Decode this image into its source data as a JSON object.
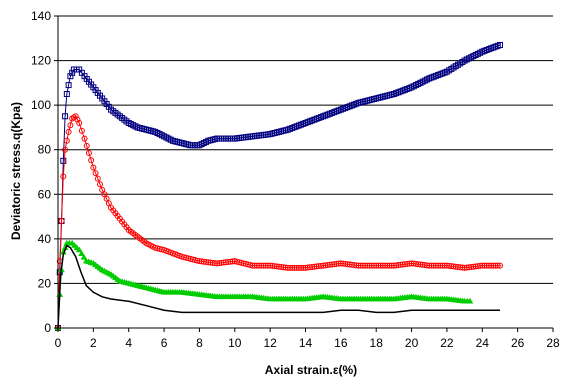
{
  "chart_data": {
    "type": "line",
    "title": "",
    "xlabel": "Axial strain.ε(%)",
    "ylabel": "Deviatoric stress.q(Kpa)",
    "xlim": [
      0,
      28
    ],
    "ylim": [
      0,
      140
    ],
    "xticks": [
      "0",
      "2",
      "4",
      "6",
      "8",
      "10",
      "12",
      "14",
      "16",
      "18",
      "20",
      "22",
      "24",
      "26",
      "28"
    ],
    "yticks": [
      "0",
      "20",
      "40",
      "60",
      "80",
      "100",
      "120",
      "140"
    ],
    "grid": "horizontal major gridlines",
    "legend": "none",
    "series": [
      {
        "color": "#000080",
        "marker": "open-square",
        "points": [
          [
            0,
            0
          ],
          [
            0.1,
            25
          ],
          [
            0.2,
            48
          ],
          [
            0.3,
            75
          ],
          [
            0.4,
            95
          ],
          [
            0.5,
            105
          ],
          [
            0.7,
            113
          ],
          [
            0.9,
            116
          ],
          [
            1.2,
            116
          ],
          [
            1.5,
            113
          ],
          [
            2,
            108
          ],
          [
            2.5,
            103
          ],
          [
            3,
            98
          ],
          [
            3.5,
            95
          ],
          [
            4,
            92
          ],
          [
            4.5,
            90
          ],
          [
            5,
            89
          ],
          [
            5.5,
            88
          ],
          [
            6,
            86
          ],
          [
            6.5,
            84
          ],
          [
            7,
            83
          ],
          [
            7.5,
            82
          ],
          [
            8,
            82
          ],
          [
            8.5,
            84
          ],
          [
            9,
            85
          ],
          [
            10,
            85
          ],
          [
            11,
            86
          ],
          [
            12,
            87
          ],
          [
            13,
            89
          ],
          [
            14,
            92
          ],
          [
            15,
            95
          ],
          [
            16,
            98
          ],
          [
            17,
            101
          ],
          [
            18,
            103
          ],
          [
            19,
            105
          ],
          [
            20,
            108
          ],
          [
            21,
            112
          ],
          [
            22,
            115
          ],
          [
            23,
            120
          ],
          [
            24,
            124
          ],
          [
            25,
            127
          ]
        ]
      },
      {
        "color": "#ff0000",
        "marker": "open-circle",
        "points": [
          [
            0,
            0
          ],
          [
            0.1,
            30
          ],
          [
            0.2,
            48
          ],
          [
            0.3,
            68
          ],
          [
            0.4,
            80
          ],
          [
            0.6,
            88
          ],
          [
            0.8,
            94
          ],
          [
            1,
            95
          ],
          [
            1.2,
            92
          ],
          [
            1.5,
            85
          ],
          [
            2,
            72
          ],
          [
            2.5,
            62
          ],
          [
            3,
            54
          ],
          [
            3.5,
            49
          ],
          [
            4,
            44
          ],
          [
            4.5,
            41
          ],
          [
            5,
            38
          ],
          [
            5.5,
            36
          ],
          [
            6,
            35
          ],
          [
            7,
            32
          ],
          [
            8,
            30
          ],
          [
            9,
            29
          ],
          [
            10,
            30
          ],
          [
            11,
            28
          ],
          [
            12,
            28
          ],
          [
            13,
            27
          ],
          [
            14,
            27
          ],
          [
            15,
            28
          ],
          [
            16,
            29
          ],
          [
            17,
            28
          ],
          [
            18,
            28
          ],
          [
            19,
            28
          ],
          [
            20,
            29
          ],
          [
            21,
            28
          ],
          [
            22,
            28
          ],
          [
            23,
            27
          ],
          [
            24,
            28
          ],
          [
            25,
            28
          ]
        ]
      },
      {
        "color": "#00cc00",
        "marker": "triangle",
        "points": [
          [
            0,
            0
          ],
          [
            0.1,
            15
          ],
          [
            0.2,
            26
          ],
          [
            0.3,
            34
          ],
          [
            0.5,
            38
          ],
          [
            0.8,
            38
          ],
          [
            1.2,
            35
          ],
          [
            1.6,
            30
          ],
          [
            2,
            29
          ],
          [
            2.5,
            26
          ],
          [
            3,
            24
          ],
          [
            3.5,
            21
          ],
          [
            4,
            20
          ],
          [
            5,
            18
          ],
          [
            6,
            16
          ],
          [
            7,
            16
          ],
          [
            8,
            15
          ],
          [
            9,
            14
          ],
          [
            10,
            14
          ],
          [
            11,
            14
          ],
          [
            12,
            13
          ],
          [
            13,
            13
          ],
          [
            14,
            13
          ],
          [
            15,
            14
          ],
          [
            16,
            13
          ],
          [
            17,
            13
          ],
          [
            18,
            13
          ],
          [
            19,
            13
          ],
          [
            20,
            14
          ],
          [
            21,
            13
          ],
          [
            22,
            13
          ],
          [
            23,
            12
          ],
          [
            23.3,
            12
          ]
        ]
      },
      {
        "color": "#000000",
        "marker": "none",
        "points": [
          [
            0,
            0
          ],
          [
            0.15,
            24
          ],
          [
            0.3,
            33
          ],
          [
            0.5,
            37
          ],
          [
            0.7,
            36
          ],
          [
            1,
            32
          ],
          [
            1.3,
            25
          ],
          [
            1.6,
            19
          ],
          [
            2,
            16
          ],
          [
            2.5,
            14
          ],
          [
            3,
            13
          ],
          [
            4,
            12
          ],
          [
            5,
            10
          ],
          [
            6,
            8
          ],
          [
            7,
            7
          ],
          [
            8,
            7
          ],
          [
            9,
            7
          ],
          [
            10,
            7
          ],
          [
            11,
            7
          ],
          [
            12,
            7
          ],
          [
            13,
            7
          ],
          [
            14,
            7
          ],
          [
            15,
            7
          ],
          [
            16,
            8
          ],
          [
            17,
            8
          ],
          [
            18,
            7
          ],
          [
            19,
            7
          ],
          [
            20,
            8
          ],
          [
            21,
            8
          ],
          [
            22,
            8
          ],
          [
            23,
            8
          ],
          [
            24,
            8
          ],
          [
            25,
            8
          ]
        ]
      }
    ]
  }
}
